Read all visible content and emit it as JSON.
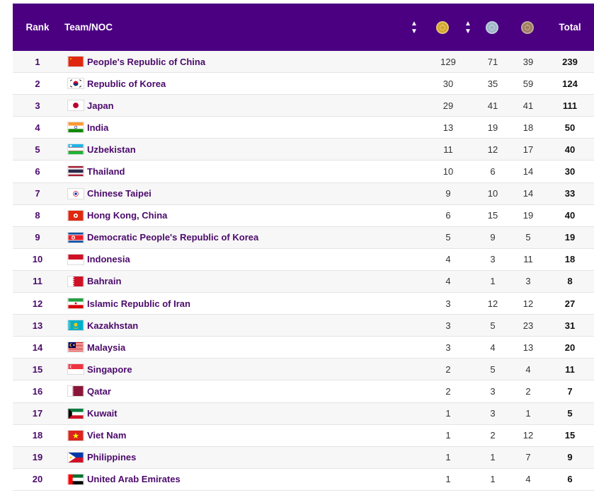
{
  "header": {
    "rank": "Rank",
    "team": "Team/NOC",
    "total": "Total",
    "sort_icon": "sort-icon",
    "medal_colors": {
      "gold": "#d4a62a",
      "silver": "#9fb4c8",
      "bronze": "#a07d5e"
    }
  },
  "rows": [
    {
      "rank": "1",
      "name": "People's Republic of China",
      "gold": "129",
      "silver": "71",
      "bronze": "39",
      "total": "239"
    },
    {
      "rank": "2",
      "name": "Republic of Korea",
      "gold": "30",
      "silver": "35",
      "bronze": "59",
      "total": "124"
    },
    {
      "rank": "3",
      "name": "Japan",
      "gold": "29",
      "silver": "41",
      "bronze": "41",
      "total": "111"
    },
    {
      "rank": "4",
      "name": "India",
      "gold": "13",
      "silver": "19",
      "bronze": "18",
      "total": "50"
    },
    {
      "rank": "5",
      "name": "Uzbekistan",
      "gold": "11",
      "silver": "12",
      "bronze": "17",
      "total": "40"
    },
    {
      "rank": "6",
      "name": "Thailand",
      "gold": "10",
      "silver": "6",
      "bronze": "14",
      "total": "30"
    },
    {
      "rank": "7",
      "name": "Chinese Taipei",
      "gold": "9",
      "silver": "10",
      "bronze": "14",
      "total": "33"
    },
    {
      "rank": "8",
      "name": "Hong Kong, China",
      "gold": "6",
      "silver": "15",
      "bronze": "19",
      "total": "40"
    },
    {
      "rank": "9",
      "name": "Democratic People's Republic of Korea",
      "gold": "5",
      "silver": "9",
      "bronze": "5",
      "total": "19"
    },
    {
      "rank": "10",
      "name": "Indonesia",
      "gold": "4",
      "silver": "3",
      "bronze": "11",
      "total": "18"
    },
    {
      "rank": "11",
      "name": "Bahrain",
      "gold": "4",
      "silver": "1",
      "bronze": "3",
      "total": "8"
    },
    {
      "rank": "12",
      "name": "Islamic Republic of Iran",
      "gold": "3",
      "silver": "12",
      "bronze": "12",
      "total": "27"
    },
    {
      "rank": "13",
      "name": "Kazakhstan",
      "gold": "3",
      "silver": "5",
      "bronze": "23",
      "total": "31"
    },
    {
      "rank": "14",
      "name": "Malaysia",
      "gold": "3",
      "silver": "4",
      "bronze": "13",
      "total": "20"
    },
    {
      "rank": "15",
      "name": "Singapore",
      "gold": "2",
      "silver": "5",
      "bronze": "4",
      "total": "11"
    },
    {
      "rank": "16",
      "name": "Qatar",
      "gold": "2",
      "silver": "3",
      "bronze": "2",
      "total": "7"
    },
    {
      "rank": "17",
      "name": "Kuwait",
      "gold": "1",
      "silver": "3",
      "bronze": "1",
      "total": "5"
    },
    {
      "rank": "18",
      "name": "Viet Nam",
      "gold": "1",
      "silver": "2",
      "bronze": "12",
      "total": "15"
    },
    {
      "rank": "19",
      "name": "Philippines",
      "gold": "1",
      "silver": "1",
      "bronze": "7",
      "total": "9"
    },
    {
      "rank": "20",
      "name": "United Arab Emirates",
      "gold": "1",
      "silver": "1",
      "bronze": "4",
      "total": "6"
    }
  ]
}
